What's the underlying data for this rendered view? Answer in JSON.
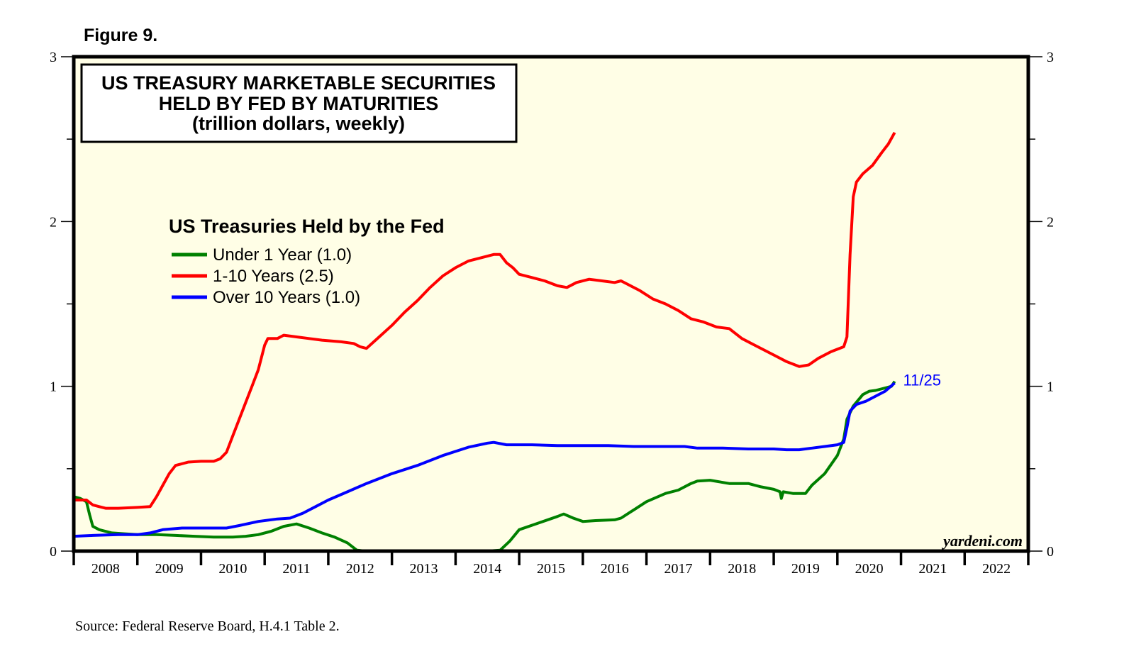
{
  "figure_label": "Figure 9.",
  "source": "Source: Federal Reserve Board, H.4.1 Table 2.",
  "watermark": "yardeni.com",
  "chart_data": {
    "type": "line",
    "title": [
      "US TREASURY MARKETABLE SECURITIES",
      "HELD BY FED BY MATURITIES",
      "(trillion dollars, weekly)"
    ],
    "xlabel": "",
    "ylabel": "",
    "xlim": [
      2008,
      2023
    ],
    "ylim": [
      0,
      3
    ],
    "x_tick_labels": [
      "2008",
      "2009",
      "2010",
      "2011",
      "2012",
      "2013",
      "2014",
      "2015",
      "2016",
      "2017",
      "2018",
      "2019",
      "2020",
      "2021",
      "2022"
    ],
    "y_tick_labels": [
      "0",
      "1",
      "2",
      "3"
    ],
    "y_minor_ticks": [
      0.5,
      1.5,
      2.5
    ],
    "background": "#fffee6",
    "grid": false,
    "legend": {
      "title": "US Treasuries Held by the Fed",
      "placement": "upper-left",
      "entries": [
        "Under 1 Year (1.0)",
        "1-10 Years (2.5)",
        "Over 10 Years (1.0)"
      ]
    },
    "annotation": {
      "text": "11/25",
      "color": "#0000ff",
      "x": 2020.9,
      "y": 1.03
    },
    "series": [
      {
        "name": "Under 1 Year (1.0)",
        "color": "#008000",
        "points": [
          [
            2008.0,
            0.33
          ],
          [
            2008.1,
            0.32
          ],
          [
            2008.2,
            0.3
          ],
          [
            2008.25,
            0.22
          ],
          [
            2008.3,
            0.15
          ],
          [
            2008.4,
            0.13
          ],
          [
            2008.6,
            0.11
          ],
          [
            2008.8,
            0.105
          ],
          [
            2009.0,
            0.1
          ],
          [
            2009.3,
            0.1
          ],
          [
            2009.6,
            0.095
          ],
          [
            2009.9,
            0.09
          ],
          [
            2010.2,
            0.085
          ],
          [
            2010.5,
            0.085
          ],
          [
            2010.7,
            0.09
          ],
          [
            2010.9,
            0.1
          ],
          [
            2011.1,
            0.12
          ],
          [
            2011.3,
            0.15
          ],
          [
            2011.5,
            0.165
          ],
          [
            2011.7,
            0.14
          ],
          [
            2011.9,
            0.11
          ],
          [
            2012.1,
            0.085
          ],
          [
            2012.3,
            0.05
          ],
          [
            2012.45,
            0.005
          ],
          [
            2012.6,
            0.0
          ],
          [
            2013.0,
            0.0
          ],
          [
            2013.5,
            0.0
          ],
          [
            2014.0,
            0.0
          ],
          [
            2014.5,
            0.0
          ],
          [
            2014.7,
            0.005
          ],
          [
            2014.85,
            0.06
          ],
          [
            2015.0,
            0.13
          ],
          [
            2015.3,
            0.17
          ],
          [
            2015.6,
            0.21
          ],
          [
            2015.7,
            0.225
          ],
          [
            2015.85,
            0.2
          ],
          [
            2016.0,
            0.18
          ],
          [
            2016.2,
            0.185
          ],
          [
            2016.5,
            0.19
          ],
          [
            2016.6,
            0.2
          ],
          [
            2016.8,
            0.25
          ],
          [
            2017.0,
            0.3
          ],
          [
            2017.3,
            0.35
          ],
          [
            2017.5,
            0.37
          ],
          [
            2017.7,
            0.41
          ],
          [
            2017.8,
            0.425
          ],
          [
            2018.0,
            0.43
          ],
          [
            2018.3,
            0.41
          ],
          [
            2018.6,
            0.41
          ],
          [
            2018.8,
            0.39
          ],
          [
            2019.0,
            0.375
          ],
          [
            2019.1,
            0.36
          ],
          [
            2019.12,
            0.32
          ],
          [
            2019.15,
            0.36
          ],
          [
            2019.3,
            0.35
          ],
          [
            2019.5,
            0.35
          ],
          [
            2019.6,
            0.4
          ],
          [
            2019.8,
            0.47
          ],
          [
            2020.0,
            0.58
          ],
          [
            2020.1,
            0.68
          ],
          [
            2020.15,
            0.8
          ],
          [
            2020.25,
            0.88
          ],
          [
            2020.4,
            0.95
          ],
          [
            2020.5,
            0.97
          ],
          [
            2020.6,
            0.975
          ],
          [
            2020.75,
            0.99
          ],
          [
            2020.85,
            1.0
          ],
          [
            2020.9,
            1.03
          ]
        ]
      },
      {
        "name": "1-10 Years (2.5)",
        "color": "#ff0000",
        "points": [
          [
            2008.0,
            0.31
          ],
          [
            2008.2,
            0.31
          ],
          [
            2008.3,
            0.28
          ],
          [
            2008.4,
            0.27
          ],
          [
            2008.5,
            0.26
          ],
          [
            2008.7,
            0.26
          ],
          [
            2009.0,
            0.265
          ],
          [
            2009.2,
            0.27
          ],
          [
            2009.3,
            0.33
          ],
          [
            2009.4,
            0.4
          ],
          [
            2009.5,
            0.47
          ],
          [
            2009.6,
            0.52
          ],
          [
            2009.8,
            0.54
          ],
          [
            2010.0,
            0.545
          ],
          [
            2010.2,
            0.545
          ],
          [
            2010.3,
            0.56
          ],
          [
            2010.4,
            0.6
          ],
          [
            2010.5,
            0.7
          ],
          [
            2010.6,
            0.8
          ],
          [
            2010.7,
            0.9
          ],
          [
            2010.8,
            1.0
          ],
          [
            2010.9,
            1.1
          ],
          [
            2011.0,
            1.25
          ],
          [
            2011.05,
            1.29
          ],
          [
            2011.2,
            1.29
          ],
          [
            2011.3,
            1.31
          ],
          [
            2011.5,
            1.3
          ],
          [
            2011.7,
            1.29
          ],
          [
            2011.9,
            1.28
          ],
          [
            2012.2,
            1.27
          ],
          [
            2012.4,
            1.26
          ],
          [
            2012.5,
            1.24
          ],
          [
            2012.6,
            1.23
          ],
          [
            2012.8,
            1.3
          ],
          [
            2013.0,
            1.37
          ],
          [
            2013.2,
            1.45
          ],
          [
            2013.4,
            1.52
          ],
          [
            2013.6,
            1.6
          ],
          [
            2013.8,
            1.67
          ],
          [
            2014.0,
            1.72
          ],
          [
            2014.2,
            1.76
          ],
          [
            2014.4,
            1.78
          ],
          [
            2014.6,
            1.8
          ],
          [
            2014.7,
            1.8
          ],
          [
            2014.8,
            1.75
          ],
          [
            2014.9,
            1.72
          ],
          [
            2015.0,
            1.68
          ],
          [
            2015.2,
            1.66
          ],
          [
            2015.4,
            1.64
          ],
          [
            2015.6,
            1.61
          ],
          [
            2015.75,
            1.6
          ],
          [
            2015.9,
            1.63
          ],
          [
            2016.1,
            1.65
          ],
          [
            2016.3,
            1.64
          ],
          [
            2016.5,
            1.63
          ],
          [
            2016.6,
            1.64
          ],
          [
            2016.7,
            1.62
          ],
          [
            2016.9,
            1.58
          ],
          [
            2017.1,
            1.53
          ],
          [
            2017.3,
            1.5
          ],
          [
            2017.5,
            1.46
          ],
          [
            2017.7,
            1.41
          ],
          [
            2017.9,
            1.39
          ],
          [
            2018.1,
            1.36
          ],
          [
            2018.3,
            1.35
          ],
          [
            2018.5,
            1.29
          ],
          [
            2018.7,
            1.25
          ],
          [
            2018.9,
            1.21
          ],
          [
            2019.0,
            1.19
          ],
          [
            2019.2,
            1.15
          ],
          [
            2019.4,
            1.12
          ],
          [
            2019.55,
            1.13
          ],
          [
            2019.7,
            1.17
          ],
          [
            2019.9,
            1.21
          ],
          [
            2020.1,
            1.24
          ],
          [
            2020.15,
            1.3
          ],
          [
            2020.2,
            1.8
          ],
          [
            2020.25,
            2.15
          ],
          [
            2020.3,
            2.24
          ],
          [
            2020.4,
            2.29
          ],
          [
            2020.55,
            2.34
          ],
          [
            2020.7,
            2.42
          ],
          [
            2020.8,
            2.47
          ],
          [
            2020.9,
            2.54
          ]
        ]
      },
      {
        "name": "Over 10 Years (1.0)",
        "color": "#0000ff",
        "points": [
          [
            2008.0,
            0.09
          ],
          [
            2008.3,
            0.095
          ],
          [
            2008.7,
            0.1
          ],
          [
            2009.0,
            0.1
          ],
          [
            2009.2,
            0.11
          ],
          [
            2009.4,
            0.13
          ],
          [
            2009.7,
            0.14
          ],
          [
            2010.0,
            0.14
          ],
          [
            2010.2,
            0.14
          ],
          [
            2010.4,
            0.14
          ],
          [
            2010.6,
            0.155
          ],
          [
            2010.9,
            0.18
          ],
          [
            2011.2,
            0.195
          ],
          [
            2011.4,
            0.2
          ],
          [
            2011.6,
            0.23
          ],
          [
            2011.8,
            0.27
          ],
          [
            2012.0,
            0.31
          ],
          [
            2012.3,
            0.36
          ],
          [
            2012.6,
            0.41
          ],
          [
            2013.0,
            0.47
          ],
          [
            2013.4,
            0.52
          ],
          [
            2013.8,
            0.58
          ],
          [
            2014.2,
            0.63
          ],
          [
            2014.5,
            0.655
          ],
          [
            2014.6,
            0.66
          ],
          [
            2014.8,
            0.645
          ],
          [
            2015.2,
            0.645
          ],
          [
            2015.6,
            0.64
          ],
          [
            2016.0,
            0.64
          ],
          [
            2016.4,
            0.64
          ],
          [
            2016.8,
            0.635
          ],
          [
            2017.2,
            0.635
          ],
          [
            2017.6,
            0.635
          ],
          [
            2017.8,
            0.625
          ],
          [
            2018.2,
            0.625
          ],
          [
            2018.6,
            0.62
          ],
          [
            2019.0,
            0.62
          ],
          [
            2019.2,
            0.615
          ],
          [
            2019.4,
            0.615
          ],
          [
            2019.6,
            0.625
          ],
          [
            2019.8,
            0.635
          ],
          [
            2020.0,
            0.645
          ],
          [
            2020.1,
            0.66
          ],
          [
            2020.15,
            0.75
          ],
          [
            2020.2,
            0.85
          ],
          [
            2020.3,
            0.89
          ],
          [
            2020.45,
            0.91
          ],
          [
            2020.6,
            0.94
          ],
          [
            2020.75,
            0.97
          ],
          [
            2020.9,
            1.02
          ]
        ]
      }
    ]
  }
}
